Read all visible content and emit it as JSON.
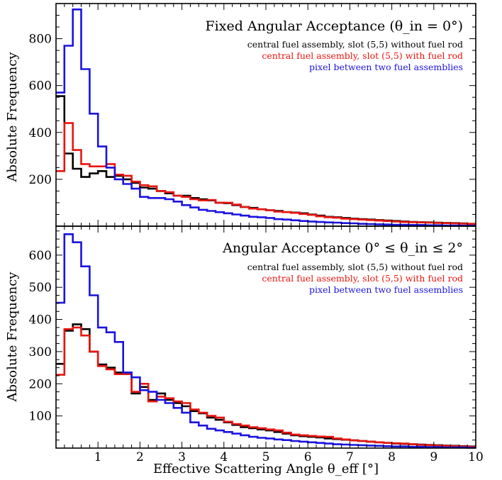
{
  "figure": {
    "xlabel": "Effective Scattering Angle θ_eff [°]",
    "ylabel": "Absolute Frequency"
  },
  "chart_data": [
    {
      "type": "line",
      "drawstyle": "steps",
      "title": "Fixed Angular Acceptance (θ_in = 0°)",
      "xlabel": "Effective Scattering Angle θ_eff [°]",
      "ylabel": "Absolute Frequency",
      "xlim": [
        0,
        10
      ],
      "ylim": [
        0,
        950
      ],
      "x_ticks": [
        1,
        2,
        3,
        4,
        5,
        6,
        7,
        8,
        9,
        10
      ],
      "y_ticks": [
        200,
        400,
        600,
        800
      ],
      "bin_width": 0.2,
      "grid": false,
      "legend_position": "top-right",
      "series": [
        {
          "name": "central fuel assembly, slot (5,5) without fuel rod",
          "color": "#000000",
          "values": [
            555,
            310,
            245,
            210,
            225,
            235,
            210,
            215,
            200,
            185,
            165,
            160,
            150,
            140,
            130,
            130,
            120,
            115,
            110,
            100,
            98,
            90,
            82,
            78,
            72,
            68,
            65,
            60,
            58,
            55,
            50,
            45,
            40,
            38,
            35,
            32,
            30,
            28,
            26,
            24,
            22,
            20,
            18,
            17,
            16,
            15,
            14,
            13,
            12,
            10
          ]
        },
        {
          "name": "central fuel assembly, slot (5,5) with fuel rod",
          "color": "#e8150f",
          "values": [
            235,
            440,
            325,
            265,
            255,
            255,
            265,
            220,
            215,
            190,
            175,
            170,
            150,
            145,
            130,
            125,
            115,
            110,
            112,
            100,
            100,
            92,
            82,
            75,
            72,
            68,
            62,
            60,
            57,
            52,
            48,
            42,
            38,
            36,
            32,
            30,
            28,
            26,
            24,
            22,
            20,
            18,
            17,
            16,
            15,
            14,
            13,
            12,
            11,
            10
          ]
        },
        {
          "name": "pixel between two fuel assemblies",
          "color": "#1a12e0",
          "values": [
            570,
            770,
            925,
            670,
            480,
            340,
            250,
            200,
            180,
            160,
            125,
            120,
            120,
            115,
            105,
            90,
            80,
            70,
            65,
            60,
            55,
            50,
            45,
            40,
            38,
            35,
            30,
            28,
            25,
            22,
            20,
            18,
            16,
            15,
            13,
            12,
            10,
            9,
            8,
            7,
            6,
            6,
            5,
            5,
            4,
            4,
            3,
            3,
            2,
            2
          ]
        }
      ]
    },
    {
      "type": "line",
      "drawstyle": "steps",
      "title": "Angular Acceptance 0° ≤ θ_in ≤ 2°",
      "xlabel": "Effective Scattering Angle θ_eff [°]",
      "ylabel": "Absolute Frequency",
      "xlim": [
        0,
        10
      ],
      "ylim": [
        0,
        690
      ],
      "x_ticks": [
        1,
        2,
        3,
        4,
        5,
        6,
        7,
        8,
        9,
        10
      ],
      "y_ticks": [
        100,
        200,
        300,
        400,
        500,
        600
      ],
      "bin_width": 0.2,
      "grid": false,
      "legend_position": "top-right",
      "series": [
        {
          "name": "central fuel assembly, slot (5,5) without fuel rod",
          "color": "#000000",
          "values": [
            262,
            365,
            385,
            370,
            300,
            260,
            250,
            235,
            235,
            170,
            190,
            150,
            170,
            150,
            140,
            130,
            115,
            108,
            95,
            88,
            80,
            72,
            65,
            62,
            58,
            55,
            50,
            45,
            40,
            37,
            35,
            33,
            30,
            28,
            26,
            24,
            22,
            20,
            18,
            16,
            14,
            13,
            12,
            11,
            10,
            9,
            8,
            7,
            6,
            5
          ]
        },
        {
          "name": "central fuel assembly, slot (5,5) with fuel rod",
          "color": "#e8150f",
          "values": [
            228,
            370,
            375,
            350,
            300,
            255,
            245,
            230,
            230,
            175,
            200,
            145,
            160,
            155,
            145,
            140,
            120,
            110,
            100,
            95,
            82,
            75,
            70,
            65,
            62,
            58,
            55,
            48,
            42,
            40,
            38,
            36,
            35,
            30,
            27,
            24,
            22,
            20,
            18,
            16,
            15,
            14,
            12,
            10,
            9,
            8,
            7,
            6,
            5,
            4
          ]
        },
        {
          "name": "pixel between two fuel assemblies",
          "color": "#1a12e0",
          "values": [
            452,
            665,
            640,
            565,
            475,
            375,
            360,
            330,
            235,
            220,
            180,
            175,
            150,
            140,
            125,
            110,
            80,
            70,
            60,
            55,
            50,
            45,
            40,
            35,
            32,
            30,
            27,
            25,
            22,
            20,
            18,
            16,
            14,
            12,
            11,
            10,
            9,
            8,
            7,
            6,
            5,
            5,
            4,
            4,
            3,
            3,
            2,
            2,
            2,
            1
          ]
        }
      ]
    }
  ]
}
